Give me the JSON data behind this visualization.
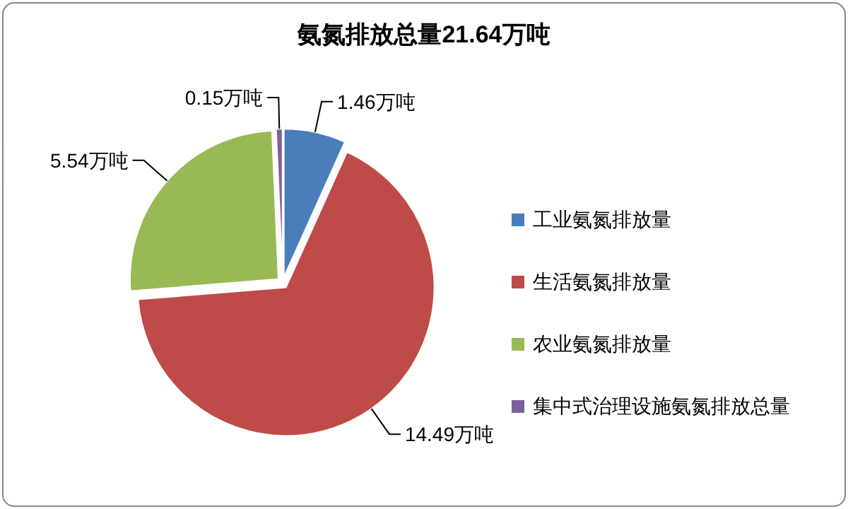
{
  "chart_data": {
    "type": "pie",
    "title": "氨氮排放总量21.64万吨",
    "categories": [
      "工业氨氮排放量",
      "生活氨氮排放量",
      "农业氨氮排放量",
      "集中式治理设施氨氮排放总量"
    ],
    "values": [
      1.46,
      14.49,
      5.54,
      0.15
    ],
    "colors": [
      "#4a7ebb",
      "#be4b48",
      "#98b954",
      "#7d60a0"
    ],
    "value_labels": [
      "1.46万吨",
      "14.49万吨",
      "5.54万吨",
      "0.15万吨"
    ],
    "legend": "right"
  }
}
